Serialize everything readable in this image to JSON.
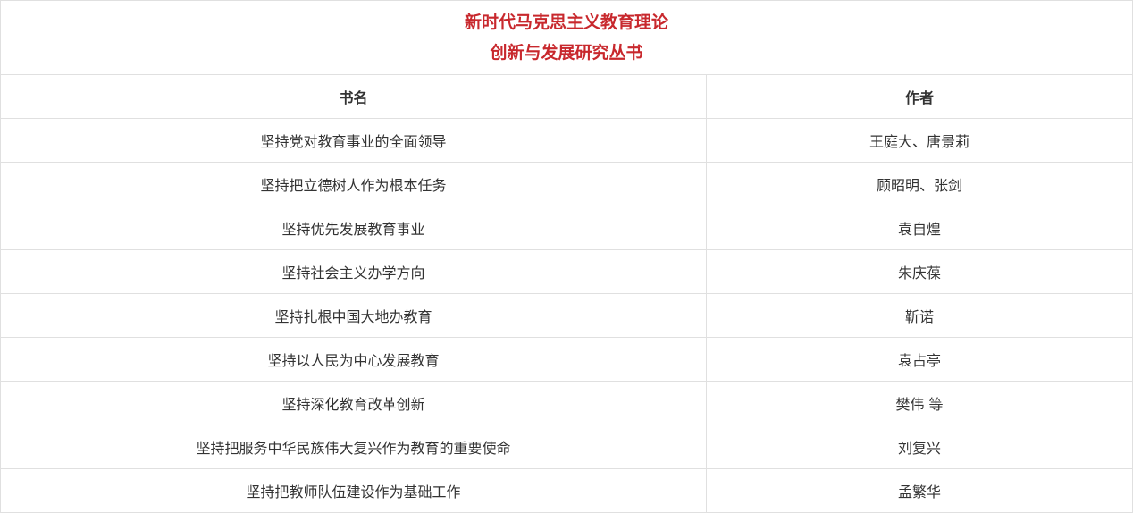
{
  "title_line1": "新时代马克思主义教育理论",
  "title_line2": "创新与发展研究丛书",
  "title_color": "#c8282d",
  "headers": {
    "book": "书名",
    "author": "作者"
  },
  "rows": [
    {
      "book": "坚持党对教育事业的全面领导",
      "author": "王庭大、唐景莉"
    },
    {
      "book": "坚持把立德树人作为根本任务",
      "author": "顾昭明、张剑"
    },
    {
      "book": "坚持优先发展教育事业",
      "author": "袁自煌"
    },
    {
      "book": "坚持社会主义办学方向",
      "author": "朱庆葆"
    },
    {
      "book": "坚持扎根中国大地办教育",
      "author": "靳诺"
    },
    {
      "book": "坚持以人民为中心发展教育",
      "author": "袁占亭"
    },
    {
      "book": "坚持深化教育改革创新",
      "author": "樊伟 等"
    },
    {
      "book": "坚持把服务中华民族伟大复兴作为教育的重要使命",
      "author": "刘复兴"
    },
    {
      "book": "坚持把教师队伍建设作为基础工作",
      "author": "孟繁华"
    }
  ]
}
